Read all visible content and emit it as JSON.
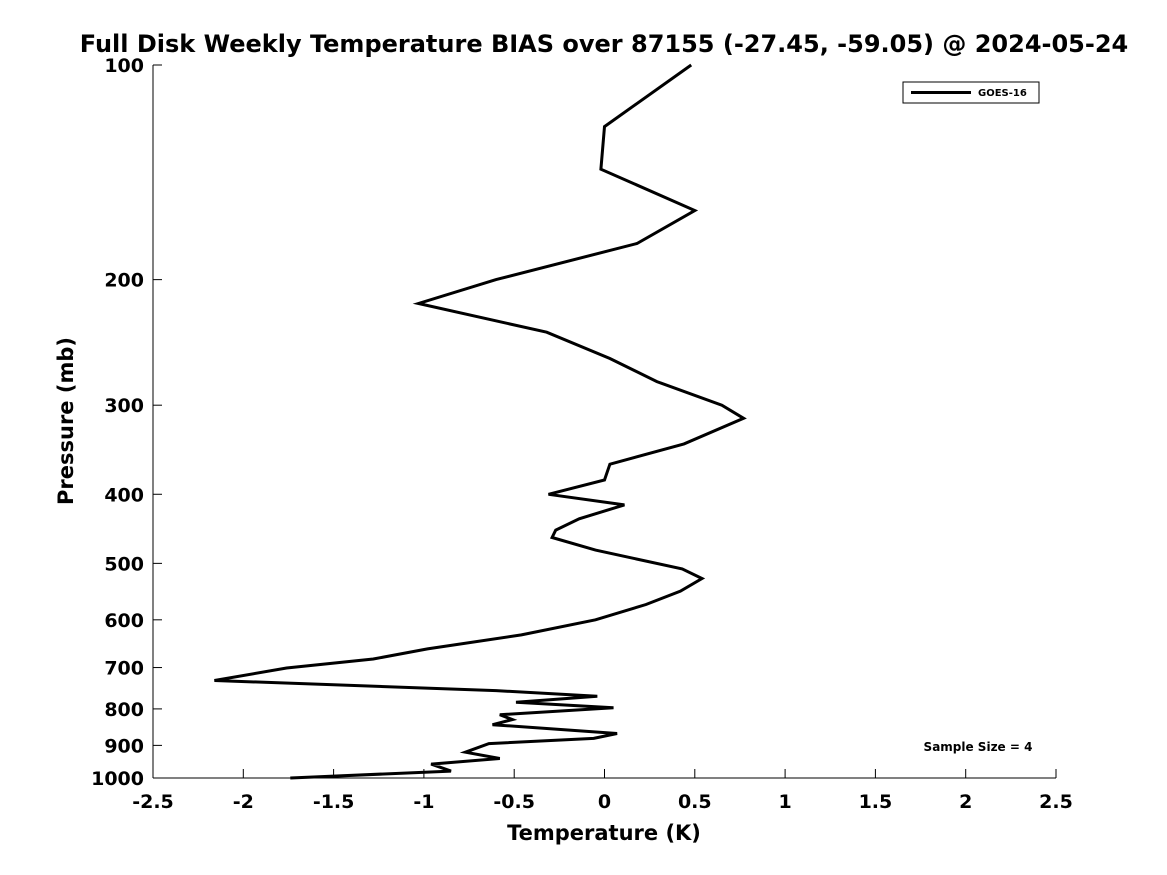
{
  "chart_data": {
    "type": "line",
    "title": "Full Disk Weekly Temperature BIAS over 87155 (-27.45, -59.05) @ 2024-05-24",
    "xlabel": "Temperature (K)",
    "ylabel": "Pressure (mb)",
    "xlim": [
      -2.5,
      2.5
    ],
    "ylim": [
      100,
      1000
    ],
    "y_scale": "log",
    "y_reversed": true,
    "x_ticks": [
      -2.5,
      -2,
      -1.5,
      -1,
      -0.5,
      0,
      0.5,
      1,
      1.5,
      2,
      2.5
    ],
    "x_tick_labels": [
      "-2.5",
      "-2",
      "-1.5",
      "-1",
      "-0.5",
      "0",
      "0.5",
      "1",
      "1.5",
      "2",
      "2.5"
    ],
    "y_ticks": [
      100,
      200,
      300,
      400,
      500,
      600,
      700,
      800,
      900,
      1000
    ],
    "y_tick_labels": [
      "100",
      "200",
      "300",
      "400",
      "500",
      "600",
      "700",
      "800",
      "900",
      "1000"
    ],
    "grid": false,
    "legend": {
      "position": "top-right"
    },
    "annotation": "Sample Size = 4",
    "series": [
      {
        "name": "GOES-16",
        "color": "#000000",
        "x": [
          0.48,
          0.0,
          -0.02,
          0.5,
          0.18,
          -0.6,
          -1.03,
          -0.32,
          0.03,
          0.29,
          0.65,
          0.77,
          0.44,
          0.03,
          0.0,
          -0.31,
          0.11,
          -0.14,
          -0.27,
          -0.29,
          -0.05,
          0.43,
          0.54,
          0.42,
          0.23,
          -0.05,
          -0.46,
          -0.98,
          -1.28,
          -1.76,
          -2.16,
          -0.6,
          -0.04,
          -0.49,
          0.05,
          -0.58,
          -0.51,
          -0.62,
          0.07,
          -0.06,
          -0.64,
          -0.77,
          -0.58,
          -0.96,
          -0.85,
          -1.74
        ],
        "y": [
          100,
          122,
          140,
          160,
          178,
          200,
          216,
          237,
          258,
          278,
          300,
          313,
          340,
          363,
          382,
          400,
          414,
          433,
          449,
          460,
          479,
          509,
          525,
          547,
          571,
          600,
          630,
          659,
          681,
          701,
          730,
          754,
          768,
          783,
          797,
          815,
          828,
          842,
          866,
          880,
          895,
          920,
          939,
          956,
          978,
          1000
        ]
      }
    ]
  }
}
